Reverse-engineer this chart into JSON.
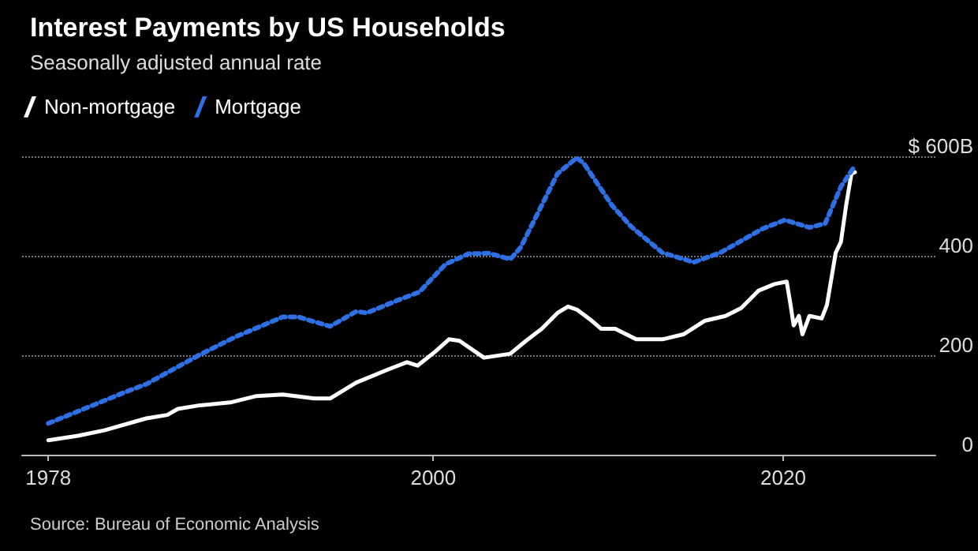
{
  "chart_data": {
    "type": "line",
    "title": "Interest Payments by US Households",
    "subtitle": "Seasonally adjusted annual rate",
    "annotations": [
      "Source: Bureau of Economic Analysis"
    ],
    "xlim": [
      1976.5,
      2028.7
    ],
    "xticks": [
      1978,
      2000,
      2020
    ],
    "ylim": [
      0,
      600
    ],
    "yticks": [
      {
        "value": 0,
        "label": "0"
      },
      {
        "value": 200,
        "label": "200"
      },
      {
        "value": 400,
        "label": "400"
      },
      {
        "value": 600,
        "label": "$ 600B"
      }
    ],
    "grid": "y",
    "legend": "top left",
    "series": [
      {
        "name": "Non-mortgage",
        "color": "#ffffff",
        "line_style": "solid",
        "x": [
          1978,
          1979.7,
          1981.2,
          1983.6,
          1984.8,
          1985.4,
          1986.6,
          1988.4,
          1989.9,
          1991.4,
          1993.2,
          1994.1,
          1995.6,
          1997.4,
          1998.5,
          1999.1,
          2000.1,
          2000.9,
          2001.5,
          2002.9,
          2004.4,
          2005.3,
          2006.2,
          2007.1,
          2007.7,
          2008.2,
          2009,
          2009.6,
          2010.4,
          2011.6,
          2013.1,
          2014.3,
          2015.5,
          2016.7,
          2017.6,
          2018.6,
          2019.5,
          2020.2,
          2020.4,
          2020.6,
          2020.9,
          2021.1,
          2021.5,
          2022.2,
          2022.5,
          2023,
          2023.3,
          2023.6,
          2023.9,
          2024.1
        ],
        "values": [
          29,
          38,
          49,
          73,
          80,
          92,
          99,
          105,
          118,
          121,
          113,
          113,
          145,
          171,
          186,
          179,
          207,
          232,
          229,
          195,
          203,
          229,
          253,
          285,
          298,
          292,
          271,
          253,
          253,
          232,
          232,
          242,
          269,
          279,
          295,
          330,
          343,
          348,
          306,
          260,
          279,
          242,
          279,
          274,
          301,
          406,
          428,
          502,
          565,
          568
        ]
      },
      {
        "name": "Mortgage",
        "color": "#2f6fe4",
        "line_style": "dotted",
        "x": [
          1978,
          1982.4,
          1983.6,
          1986.6,
          1988.7,
          1991.4,
          1992.3,
          1994.1,
          1995.6,
          1996.2,
          1998,
          1999.2,
          2000.7,
          2002,
          2003.2,
          2004.4,
          2005,
          2007.1,
          2008.2,
          2008.6,
          2010.2,
          2011.3,
          2013.1,
          2014.9,
          2016.4,
          2018.8,
          2020.1,
          2021.5,
          2022.4,
          2023.3,
          2024.1
        ],
        "values": [
          63,
          126,
          142,
          200,
          237,
          277,
          277,
          258,
          288,
          285,
          311,
          327,
          383,
          404,
          405,
          393,
          417,
          565,
          597,
          586,
          502,
          459,
          406,
          387,
          406,
          454,
          472,
          457,
          465,
          539,
          581
        ]
      }
    ]
  }
}
